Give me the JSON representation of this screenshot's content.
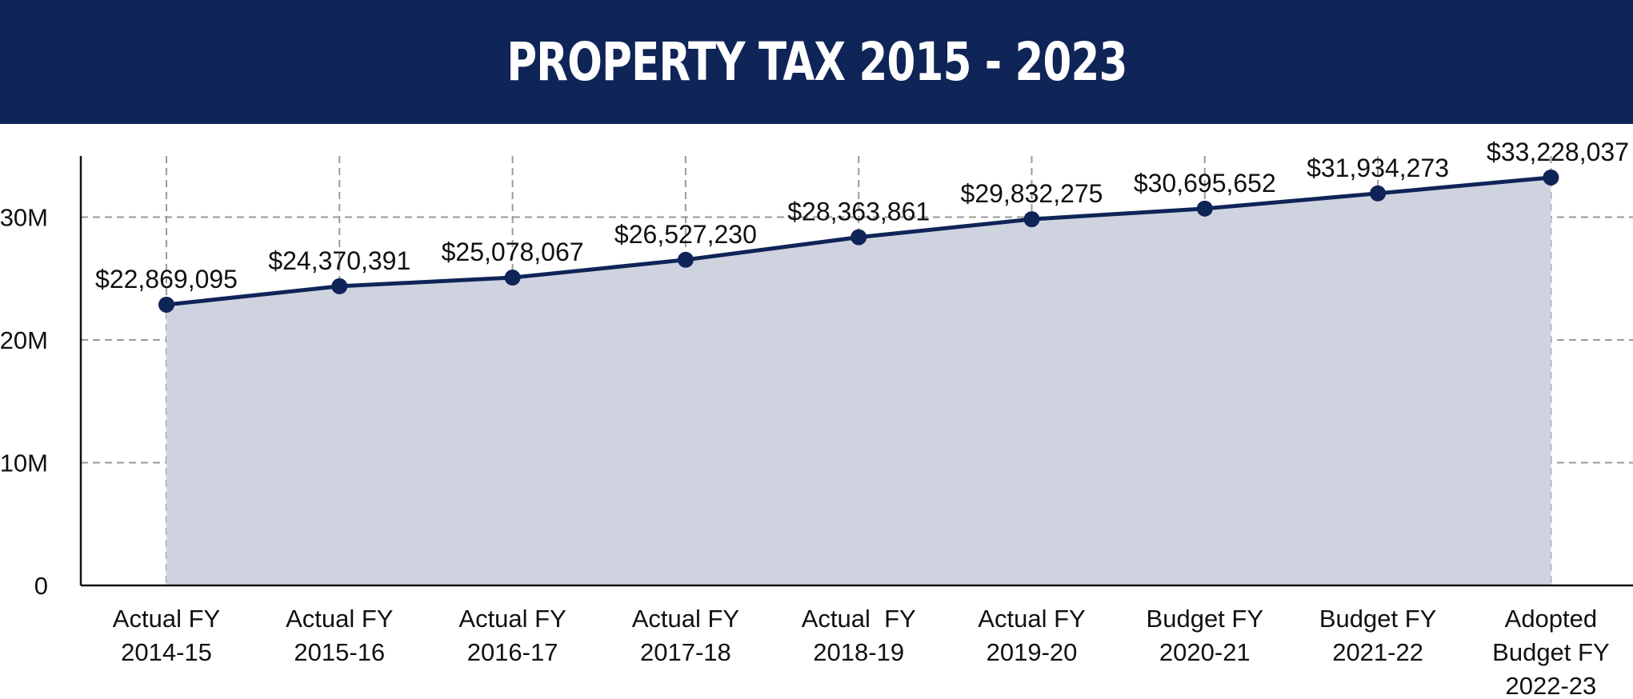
{
  "header": {
    "title": "PROPERTY TAX 2015 - 2023"
  },
  "colors": {
    "header_bg": "#0f2457",
    "line": "#0f2457",
    "area": "#ced3df",
    "grid": "#9a9a9a",
    "axis": "#111111"
  },
  "chart_data": {
    "type": "area",
    "title": "PROPERTY TAX 2015 - 2023",
    "xlabel": "",
    "ylabel": "",
    "ylim": [
      0,
      35000000
    ],
    "yticks": [
      0,
      10000000,
      20000000,
      30000000
    ],
    "ytick_labels": [
      "0",
      "10M",
      "20M",
      "30M"
    ],
    "grid": true,
    "categories": [
      [
        "Actual FY",
        "2014-15"
      ],
      [
        "Actual FY",
        "2015-16"
      ],
      [
        "Actual FY",
        "2016-17"
      ],
      [
        "Actual FY",
        "2017-18"
      ],
      [
        "Actual  FY",
        "2018-19"
      ],
      [
        "Actual FY",
        "2019-20"
      ],
      [
        "Budget FY",
        "2020-21"
      ],
      [
        "Budget FY",
        "2021-22"
      ],
      [
        "Adopted",
        "Budget FY",
        "2022-23"
      ]
    ],
    "series": [
      {
        "name": "Property Tax",
        "values": [
          22869095,
          24370391,
          25078067,
          26527230,
          28363861,
          29832275,
          30695652,
          31934273,
          33228037
        ],
        "labels": [
          "$22,869,095",
          "$24,370,391",
          "$25,078,067",
          "$26,527,230",
          "$28,363,861",
          "$29,832,275",
          "$30,695,652",
          "$31,934,273",
          "$33,228,037"
        ]
      }
    ]
  }
}
